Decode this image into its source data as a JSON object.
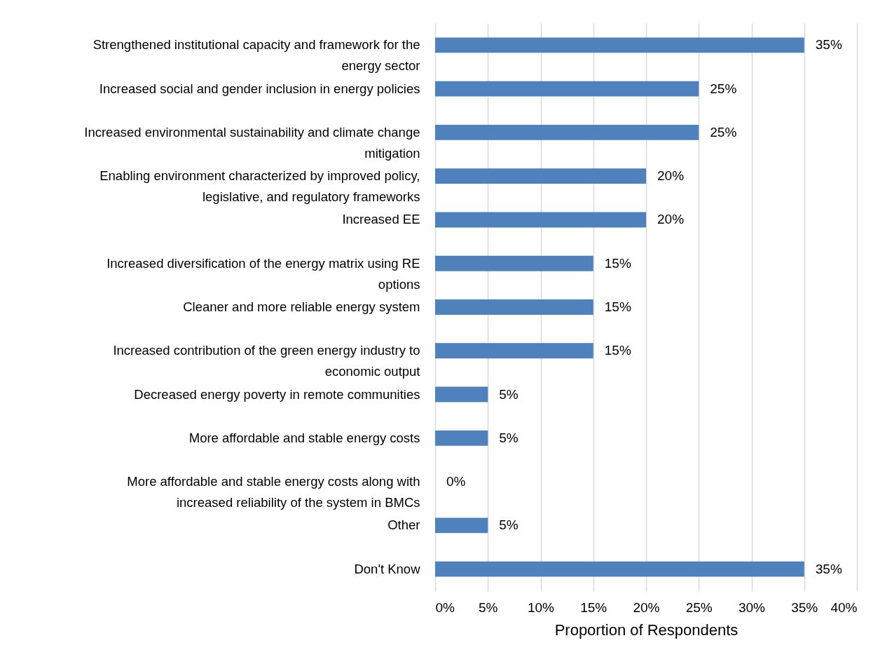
{
  "chart_data": {
    "type": "bar",
    "orientation": "horizontal",
    "xlabel": "Proportion of Respondents",
    "categories": [
      "Strengthened institutional capacity and framework for the energy sector",
      "Increased social and gender inclusion in energy policies",
      "Increased environmental sustainability and climate change mitigation",
      "Enabling environment characterized by improved policy, legislative, and regulatory frameworks",
      "Increased EE",
      "Increased diversification of the energy matrix using RE options",
      "Cleaner and more reliable energy system",
      "Increased contribution of the green energy industry to economic output",
      "Decreased energy poverty in remote communities",
      "More affordable and stable energy costs",
      "More affordable and stable energy costs along with increased reliability of the system in BMCs",
      "Other",
      "Don't Know"
    ],
    "values": [
      35,
      25,
      25,
      20,
      20,
      15,
      15,
      15,
      5,
      5,
      0,
      5,
      35
    ],
    "value_labels": [
      "35%",
      "25%",
      "25%",
      "20%",
      "20%",
      "15%",
      "15%",
      "15%",
      "5%",
      "5%",
      "0%",
      "5%",
      "35%"
    ],
    "color": "#4f81bd",
    "xlim": [
      0,
      40
    ],
    "xticks": [
      {
        "value": 0,
        "label": "0%"
      },
      {
        "value": 5,
        "label": "5%"
      },
      {
        "value": 10,
        "label": "10%"
      },
      {
        "value": 15,
        "label": "15%"
      },
      {
        "value": 20,
        "label": "20%"
      },
      {
        "value": 25,
        "label": "25%"
      },
      {
        "value": 30,
        "label": "30%"
      },
      {
        "value": 35,
        "label": "35%"
      },
      {
        "value": 40,
        "label": "40%"
      }
    ],
    "grid": "x"
  }
}
